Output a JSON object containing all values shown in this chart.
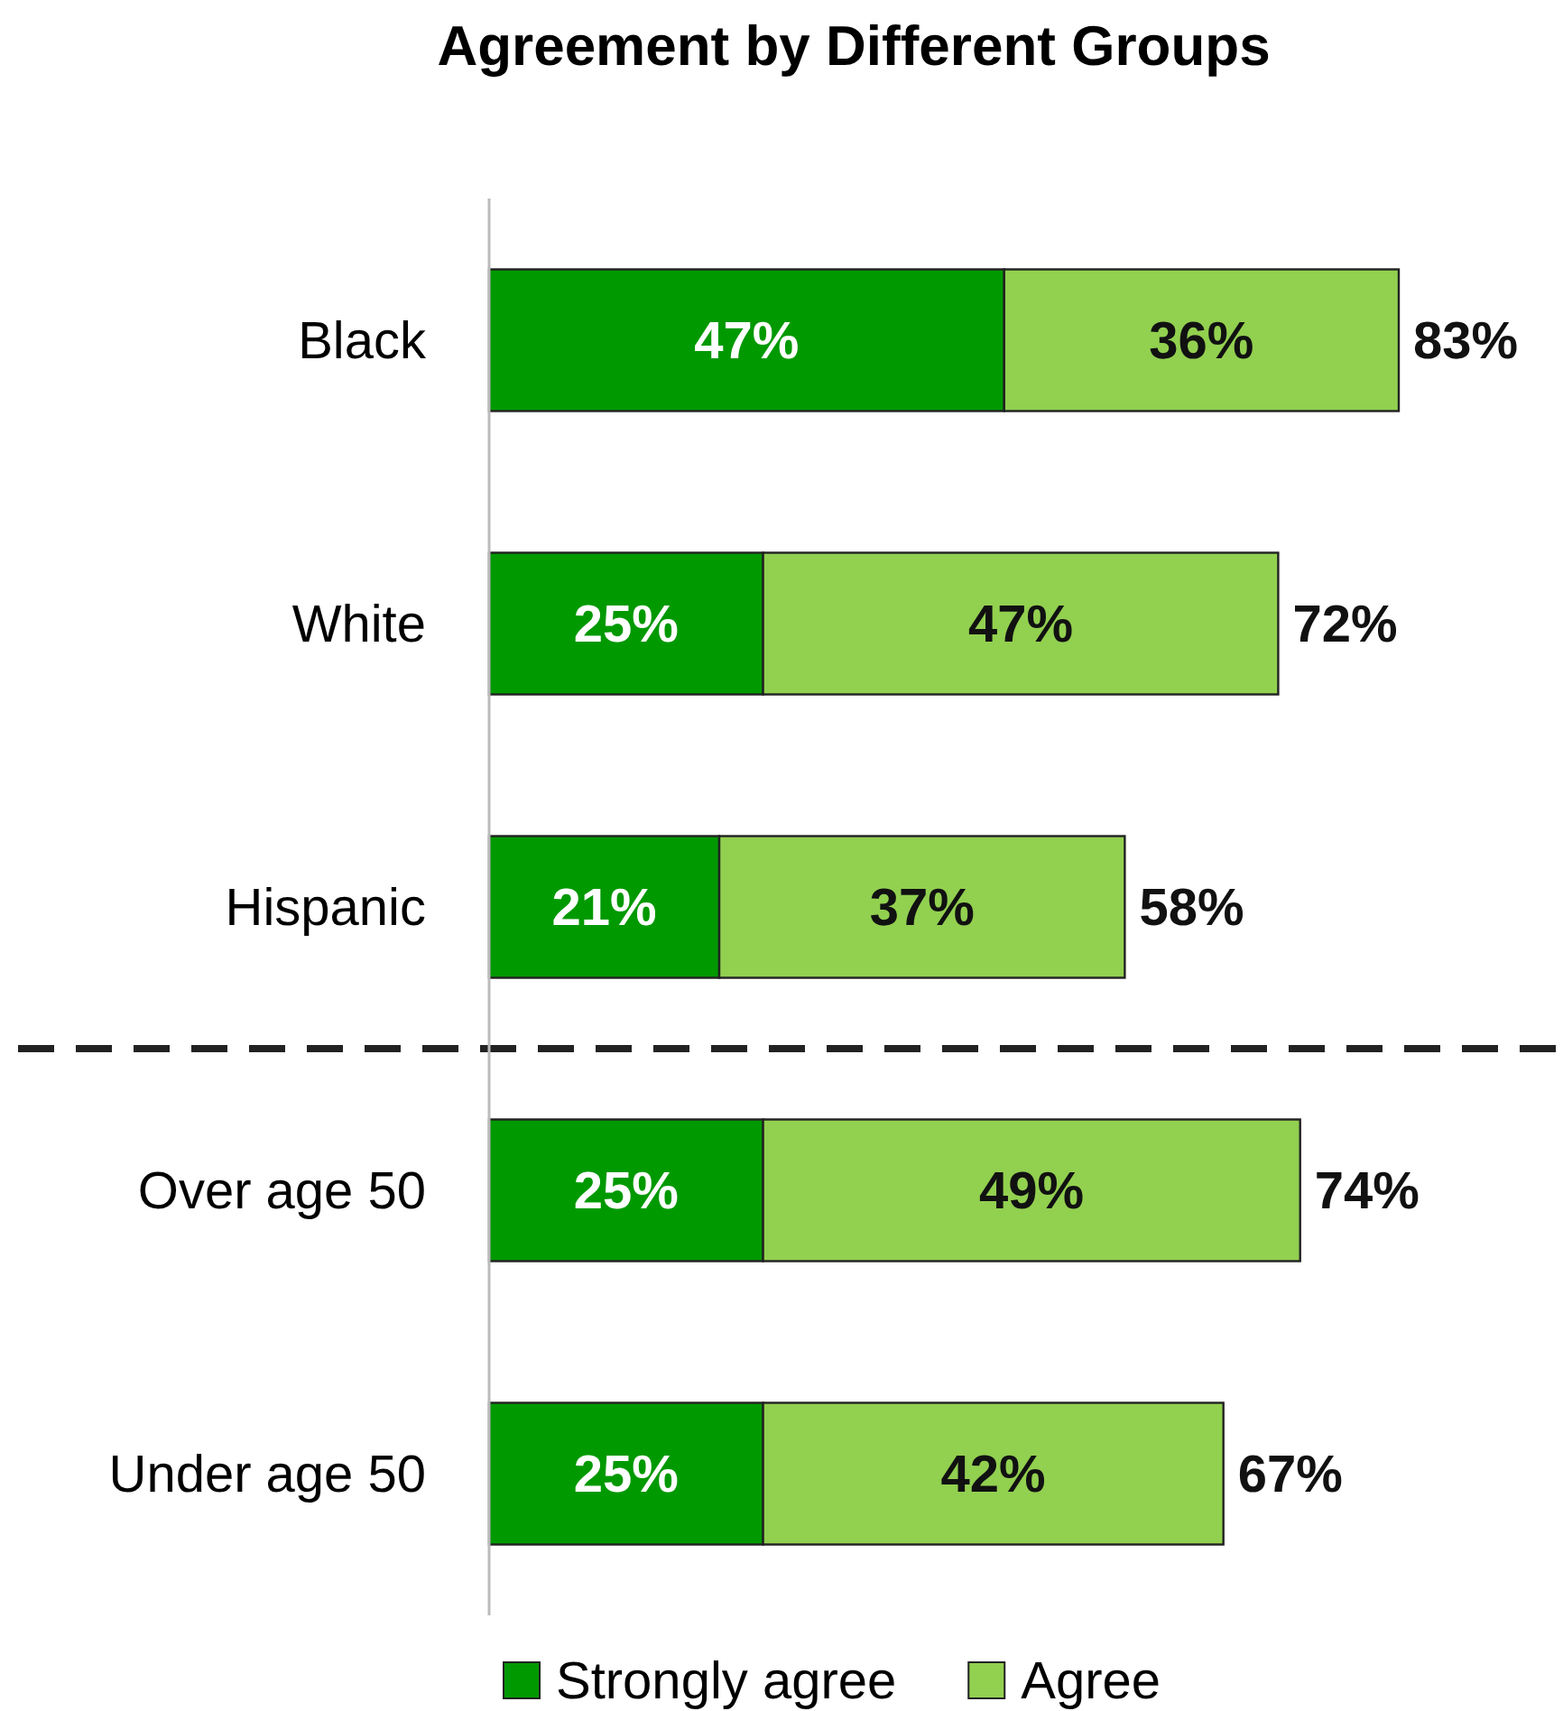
{
  "chart_data": {
    "type": "bar",
    "title": "Agreement by Different Groups",
    "orientation": "horizontal",
    "stacked": true,
    "categories": [
      "Black",
      "White",
      "Hispanic",
      "Over age 50",
      "Under age 50"
    ],
    "series": [
      {
        "name": "Strongly agree",
        "color": "#009900",
        "values": [
          47,
          25,
          21,
          25,
          25
        ],
        "value_labels": [
          "47%",
          "25%",
          "21%",
          "25%",
          "25%"
        ]
      },
      {
        "name": "Agree",
        "color": "#92d050",
        "values": [
          36,
          47,
          37,
          49,
          42
        ],
        "value_labels": [
          "36%",
          "47%",
          "37%",
          "49%",
          "42%"
        ]
      }
    ],
    "totals": [
      "83%",
      "72%",
      "58%",
      "74%",
      "67%"
    ],
    "tick_labels": "y",
    "legend": "bottom"
  }
}
